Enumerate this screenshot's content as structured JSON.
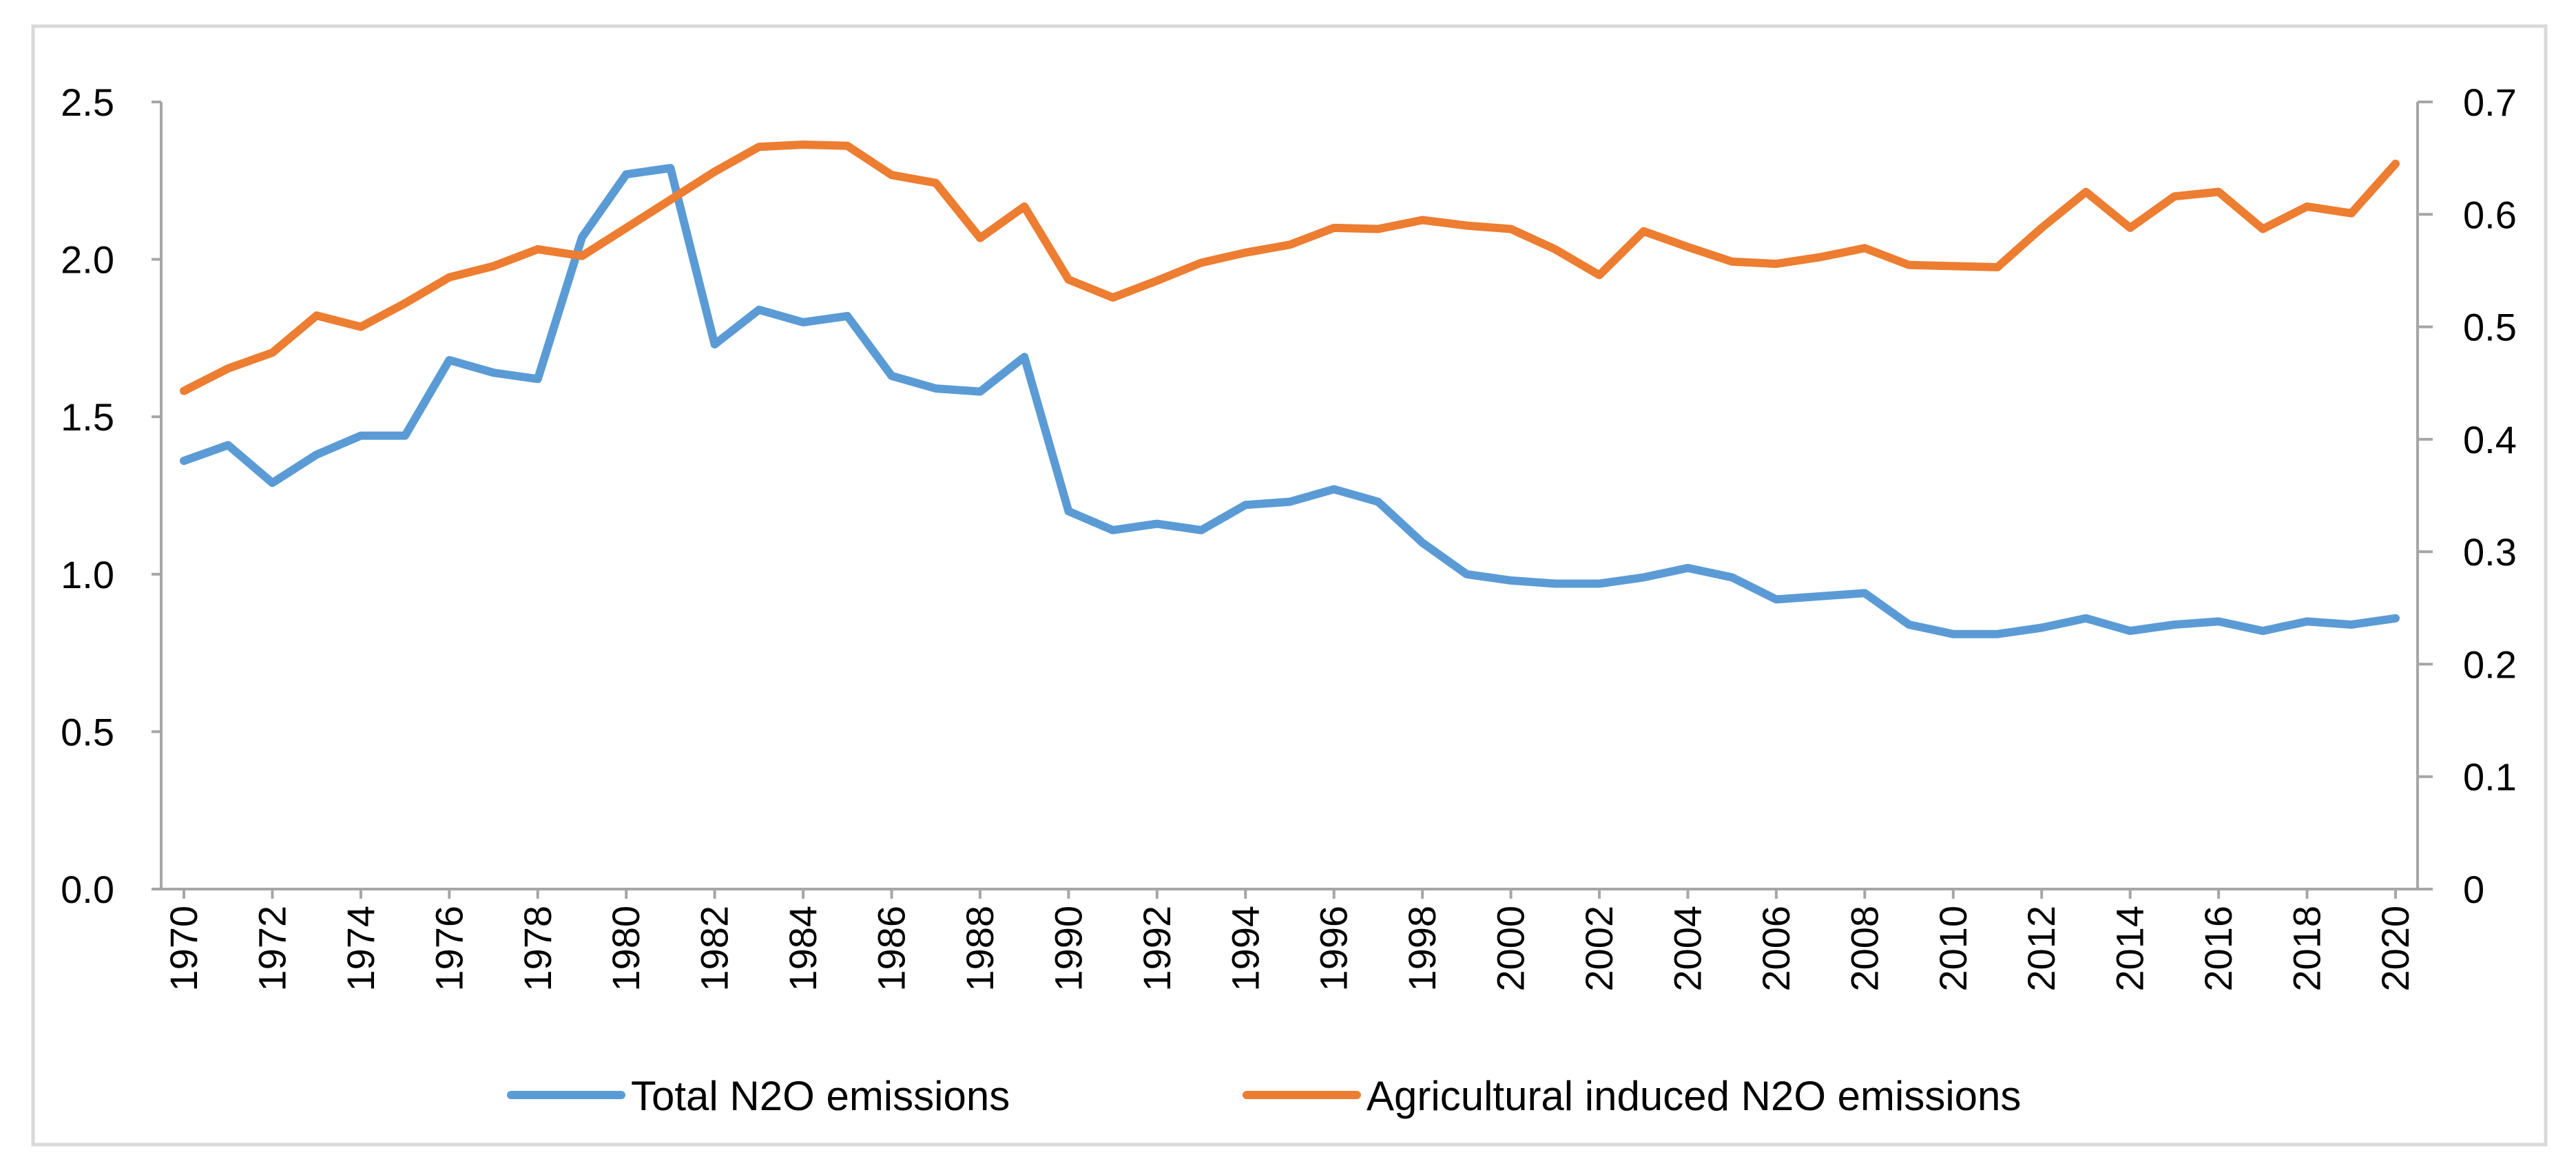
{
  "chart_data": {
    "type": "line",
    "title": "",
    "xlabel": "",
    "ylabel": "",
    "ylabel_right": "",
    "grid": false,
    "legend_position": "bottom",
    "x": [
      1970,
      1971,
      1972,
      1973,
      1974,
      1975,
      1976,
      1977,
      1978,
      1979,
      1980,
      1981,
      1982,
      1983,
      1984,
      1985,
      1986,
      1987,
      1988,
      1989,
      1990,
      1991,
      1992,
      1993,
      1994,
      1995,
      1996,
      1997,
      1998,
      1999,
      2000,
      2001,
      2002,
      2003,
      2004,
      2005,
      2006,
      2007,
      2008,
      2009,
      2010,
      2011,
      2012,
      2013,
      2014,
      2015,
      2016,
      2017,
      2018,
      2019,
      2020
    ],
    "x_tick_labels": [
      "1970",
      "1972",
      "1974",
      "1976",
      "1978",
      "1980",
      "1982",
      "1984",
      "1986",
      "1988",
      "1990",
      "1992",
      "1994",
      "1996",
      "1998",
      "2000",
      "2002",
      "2004",
      "2006",
      "2008",
      "2010",
      "2012",
      "2014",
      "2016",
      "2018",
      "2020"
    ],
    "y_left": {
      "lim": [
        0,
        2.5
      ],
      "tick_labels": [
        "0.0",
        "0.5",
        "1.0",
        "1.5",
        "2.0",
        "2.5"
      ]
    },
    "y_right": {
      "lim": [
        0,
        0.7
      ],
      "tick_labels": [
        "0",
        "0.1",
        "0.2",
        "0.3",
        "0.4",
        "0.5",
        "0.6",
        "0.7"
      ]
    },
    "series": [
      {
        "name": "Total N2O emissions",
        "axis": "left",
        "color": "#5B9BD5",
        "values": [
          1.36,
          1.41,
          1.29,
          1.38,
          1.44,
          1.44,
          1.68,
          1.64,
          1.62,
          2.07,
          2.27,
          2.29,
          1.73,
          1.84,
          1.8,
          1.82,
          1.63,
          1.59,
          1.58,
          1.69,
          1.2,
          1.14,
          1.16,
          1.14,
          1.22,
          1.23,
          1.27,
          1.23,
          1.1,
          1.0,
          0.98,
          0.97,
          0.97,
          0.99,
          1.02,
          0.99,
          0.92,
          0.93,
          0.94,
          0.84,
          0.81,
          0.81,
          0.83,
          0.86,
          0.82,
          0.84,
          0.85,
          0.82,
          0.85,
          0.84,
          0.86
        ]
      },
      {
        "name": "Agricultural induced N2O emissions",
        "axis": "right",
        "color": "#ED7D31",
        "values": [
          0.443,
          0.463,
          0.477,
          0.51,
          0.5,
          0.521,
          0.544,
          0.554,
          0.569,
          0.563,
          0.588,
          0.613,
          0.638,
          0.66,
          0.662,
          0.661,
          0.635,
          0.628,
          0.579,
          0.607,
          0.542,
          0.526,
          0.541,
          0.557,
          0.566,
          0.573,
          0.588,
          0.587,
          0.595,
          0.59,
          0.587,
          0.569,
          0.546,
          0.585,
          0.571,
          0.558,
          0.556,
          0.562,
          0.57,
          0.555,
          0.554,
          0.553,
          0.588,
          0.62,
          0.588,
          0.616,
          0.62,
          0.587,
          0.607,
          0.601,
          0.645
        ]
      }
    ]
  }
}
